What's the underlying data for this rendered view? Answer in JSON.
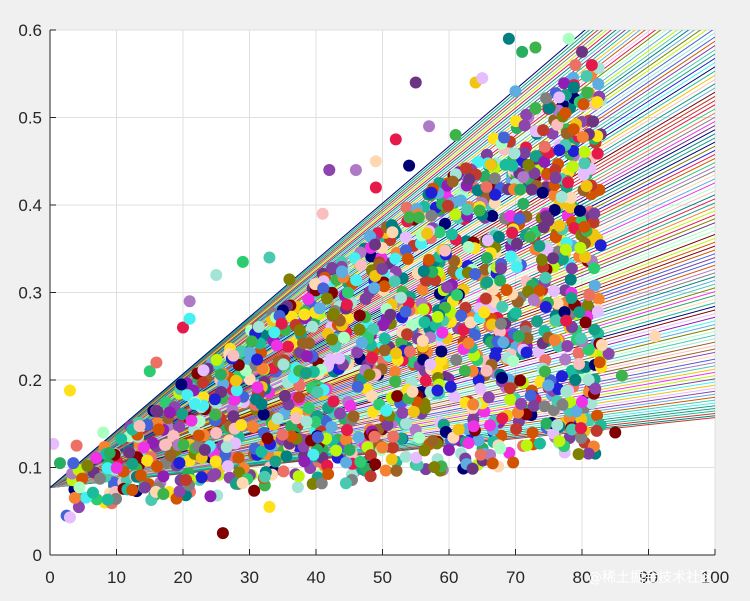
{
  "chart_data": {
    "type": "scatter",
    "title": "",
    "xlabel": "",
    "ylabel": "",
    "xlim": [
      0,
      100
    ],
    "ylim": [
      0,
      0.6
    ],
    "xticks": [
      "0",
      "10",
      "20",
      "30",
      "40",
      "50",
      "60",
      "70",
      "80",
      "90",
      "100"
    ],
    "yticks": [
      "0",
      "0.1",
      "0.2",
      "0.3",
      "0.4",
      "0.5",
      "0.6"
    ],
    "grid": true,
    "legend": "none",
    "fit_lines": {
      "intercept": 0.077,
      "slope_min": 0.0008,
      "slope_max": 0.0065,
      "count": 130
    },
    "points": [
      [
        0.5,
        0.127
      ],
      [
        3,
        0.188
      ],
      [
        1.5,
        0.105
      ],
      [
        3.5,
        0.105
      ],
      [
        4,
        0.125
      ],
      [
        2.5,
        0.045
      ],
      [
        3,
        0.043
      ],
      [
        8,
        0.14
      ],
      [
        15,
        0.21
      ],
      [
        16,
        0.22
      ],
      [
        18,
        0.163
      ],
      [
        20,
        0.26
      ],
      [
        21,
        0.29
      ],
      [
        21,
        0.27
      ],
      [
        25,
        0.32
      ],
      [
        29,
        0.335
      ],
      [
        33,
        0.34
      ],
      [
        36,
        0.315
      ],
      [
        41,
        0.39
      ],
      [
        42,
        0.44
      ],
      [
        46,
        0.44
      ],
      [
        49,
        0.45
      ],
      [
        49,
        0.42
      ],
      [
        52,
        0.475
      ],
      [
        55,
        0.54
      ],
      [
        54,
        0.445
      ],
      [
        57,
        0.49
      ],
      [
        61,
        0.48
      ],
      [
        64,
        0.54
      ],
      [
        65,
        0.545
      ],
      [
        69,
        0.59
      ],
      [
        71,
        0.575
      ],
      [
        73,
        0.58
      ],
      [
        78,
        0.59
      ],
      [
        80,
        0.575
      ],
      [
        79,
        0.56
      ],
      [
        73,
        0.51
      ],
      [
        70,
        0.53
      ],
      [
        26,
        0.025
      ],
      [
        33,
        0.055
      ],
      [
        44.5,
        0.082
      ],
      [
        81,
        0.2
      ],
      [
        82,
        0.19
      ],
      [
        84,
        0.23
      ],
      [
        86,
        0.205
      ],
      [
        91,
        0.25
      ],
      [
        83,
        0.24
      ],
      [
        85,
        0.14
      ],
      [
        80,
        0.175
      ],
      [
        79,
        0.2
      ]
    ],
    "cloud_sample_count": 1500
  },
  "watermark": {
    "text": "@稀土掘金技术社区"
  },
  "colors": {
    "figure_bg": "#f0f0f0",
    "axes_bg": "#ffffff",
    "grid": "#dfdfdf",
    "axis": "#262626"
  }
}
